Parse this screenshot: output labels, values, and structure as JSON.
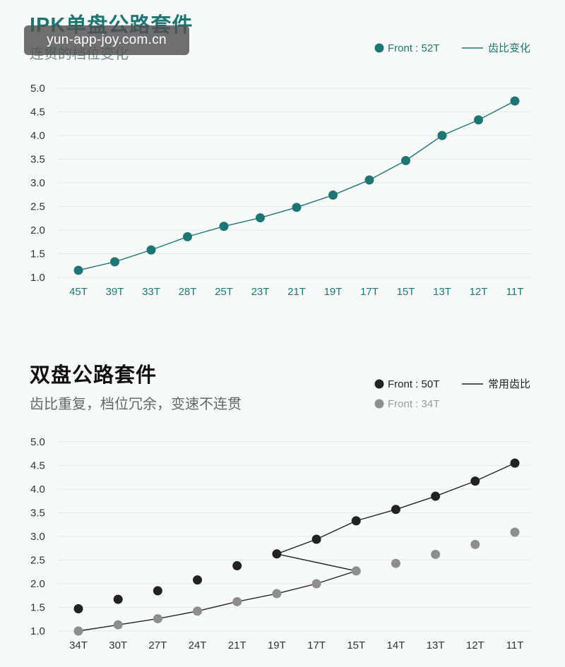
{
  "watermark": "yun-app-joy.com.cn",
  "chart_data": [
    {
      "type": "line",
      "title": "IPK单盘公路套件",
      "subtitle": "连贯的档位变化",
      "categories": [
        "45T",
        "39T",
        "33T",
        "28T",
        "25T",
        "23T",
        "21T",
        "19T",
        "17T",
        "15T",
        "13T",
        "12T",
        "11T"
      ],
      "series": [
        {
          "name": "Front : 52T",
          "values": [
            1.15,
            1.33,
            1.58,
            1.86,
            2.08,
            2.26,
            2.48,
            2.74,
            3.06,
            3.47,
            4.0,
            4.33,
            4.73
          ],
          "color": "#1d7673"
        }
      ],
      "line_legend": "齿比变化",
      "y_ticks": [
        "5.0",
        "4.5",
        "4.0",
        "3.5",
        "3.0",
        "2.5",
        "2.0",
        "1.5",
        "1.0"
      ],
      "ylim": [
        1.0,
        5.0
      ],
      "grid": true,
      "legend_position": "top-right"
    },
    {
      "type": "line",
      "title": "双盘公路套件",
      "subtitle": "齿比重复，档位冗余，变速不连贯",
      "categories": [
        "34T",
        "30T",
        "27T",
        "24T",
        "21T",
        "19T",
        "17T",
        "15T",
        "14T",
        "13T",
        "12T",
        "11T"
      ],
      "series": [
        {
          "name": "Front : 50T",
          "values": [
            1.47,
            1.67,
            1.85,
            2.08,
            2.38,
            2.63,
            2.94,
            3.33,
            3.57,
            3.85,
            4.17,
            4.55
          ],
          "color": "#222222"
        },
        {
          "name": "Front : 34T",
          "values": [
            1.0,
            1.13,
            1.26,
            1.42,
            1.62,
            1.79,
            2.0,
            2.27,
            2.43,
            2.62,
            2.83,
            3.09
          ],
          "color": "#8e8e8e"
        }
      ],
      "line_legend": "常用齿比",
      "shift_path": [
        {
          "series": 1,
          "index": 0
        },
        {
          "series": 1,
          "index": 1
        },
        {
          "series": 1,
          "index": 2
        },
        {
          "series": 1,
          "index": 3
        },
        {
          "series": 1,
          "index": 4
        },
        {
          "series": 1,
          "index": 5
        },
        {
          "series": 1,
          "index": 6
        },
        {
          "series": 1,
          "index": 7
        },
        {
          "series": 0,
          "index": 5
        },
        {
          "series": 0,
          "index": 6
        },
        {
          "series": 0,
          "index": 7
        },
        {
          "series": 0,
          "index": 8
        },
        {
          "series": 0,
          "index": 9
        },
        {
          "series": 0,
          "index": 10
        },
        {
          "series": 0,
          "index": 11
        }
      ],
      "y_ticks": [
        "5.0",
        "4.5",
        "4.0",
        "3.5",
        "3.0",
        "2.5",
        "2.0",
        "1.5",
        "1.0"
      ],
      "ylim": [
        1.0,
        5.0
      ],
      "grid": true,
      "legend_position": "top-right"
    }
  ]
}
